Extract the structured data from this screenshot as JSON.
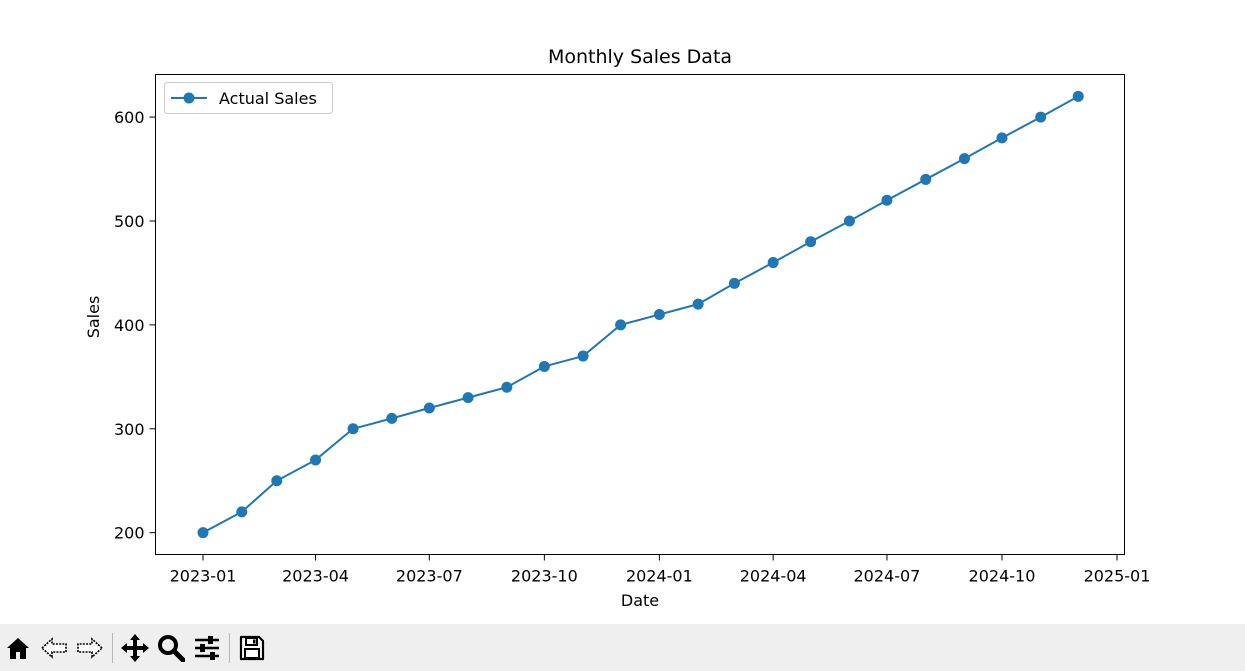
{
  "chart_data": {
    "type": "line",
    "title": "Monthly Sales Data",
    "xlabel": "Date",
    "ylabel": "Sales",
    "x": [
      "2023-01",
      "2023-02",
      "2023-03",
      "2023-04",
      "2023-05",
      "2023-06",
      "2023-07",
      "2023-08",
      "2023-09",
      "2023-10",
      "2023-11",
      "2023-12",
      "2024-01",
      "2024-02",
      "2024-03",
      "2024-04",
      "2024-05",
      "2024-06",
      "2024-07",
      "2024-08",
      "2024-09",
      "2024-10",
      "2024-11",
      "2024-12"
    ],
    "series": [
      {
        "name": "Actual Sales",
        "values": [
          200,
          220,
          250,
          270,
          300,
          310,
          320,
          330,
          340,
          360,
          370,
          400,
          410,
          420,
          440,
          460,
          480,
          500,
          520,
          540,
          560,
          580,
          600,
          620
        ],
        "color": "#1f77b4",
        "marker": "circle"
      }
    ],
    "xticks": [
      "2023-01",
      "2023-04",
      "2023-07",
      "2023-10",
      "2024-01",
      "2024-04",
      "2024-07",
      "2024-10",
      "2025-01"
    ],
    "yticks": [
      200,
      300,
      400,
      500,
      600
    ],
    "xlim": [
      "2022-11-24",
      "2025-01-07"
    ],
    "ylim": [
      179,
      641
    ],
    "grid": false,
    "legend": "upper-left"
  },
  "toolbar": {
    "icons": [
      "home-icon",
      "back-icon",
      "forward-icon",
      "pan-icon",
      "zoom-icon",
      "configure-icon",
      "save-icon"
    ]
  }
}
